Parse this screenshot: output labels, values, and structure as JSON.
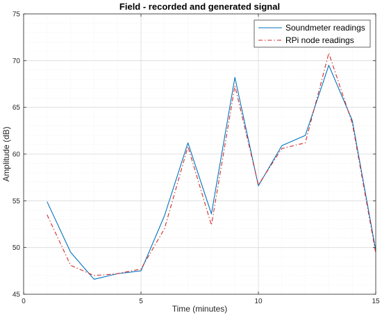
{
  "chart_data": {
    "type": "line",
    "title": "Field - recorded and generated signal",
    "xlabel": "Time (minutes)",
    "ylabel": "Amplitude (dB)",
    "xlim": [
      0,
      15
    ],
    "ylim": [
      45,
      75
    ],
    "xticks": [
      0,
      5,
      10,
      15
    ],
    "yticks": [
      45,
      50,
      55,
      60,
      65,
      70,
      75
    ],
    "grid": true,
    "minor_grid": true,
    "legend_position": "top-right",
    "series": [
      {
        "name": "Soundmeter readings",
        "color": "#0072BD",
        "style": "solid",
        "x": [
          1,
          2,
          3,
          4,
          5,
          6,
          7,
          8,
          9,
          10,
          11,
          12,
          13,
          14,
          15
        ],
        "y": [
          54.9,
          49.5,
          46.6,
          47.2,
          47.5,
          53.4,
          61.2,
          53.6,
          68.2,
          56.6,
          60.9,
          62.0,
          69.5,
          63.6,
          49.7
        ]
      },
      {
        "name": "RPi node readings",
        "color": "#D62728",
        "style": "dashdot",
        "x": [
          1,
          2,
          3,
          4,
          5,
          6,
          7,
          8,
          9,
          10,
          11,
          12,
          13,
          14,
          15
        ],
        "y": [
          53.5,
          48.1,
          47.0,
          47.2,
          47.7,
          52.0,
          60.8,
          52.4,
          67.3,
          56.7,
          60.6,
          61.2,
          70.8,
          63.3,
          49.4
        ]
      }
    ]
  }
}
